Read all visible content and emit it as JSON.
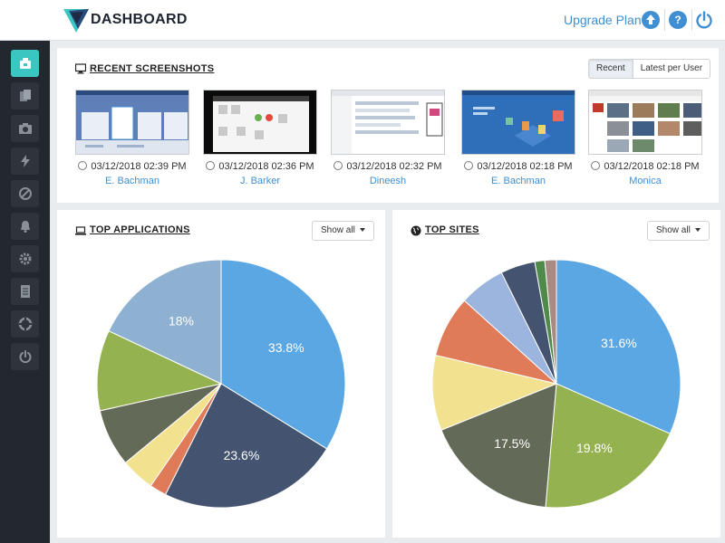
{
  "header": {
    "brand": "DASHBOARD",
    "upgrade_label": "Upgrade Plan",
    "help_label": "?"
  },
  "sidebar": {
    "items": [
      {
        "name": "dashboard-icon",
        "active": true
      },
      {
        "name": "documents-icon",
        "active": false
      },
      {
        "name": "camera-icon",
        "active": false
      },
      {
        "name": "lightning-icon",
        "active": false
      },
      {
        "name": "block-icon",
        "active": false
      },
      {
        "name": "bell-icon",
        "active": false
      },
      {
        "name": "gear-icon",
        "active": false
      },
      {
        "name": "notebook-icon",
        "active": false
      },
      {
        "name": "lifebuoy-icon",
        "active": false
      },
      {
        "name": "power-icon",
        "active": false
      }
    ]
  },
  "recent": {
    "title": "RECENT SCREENSHOTS",
    "tabs": [
      "Recent",
      "Latest per User"
    ],
    "items": [
      {
        "date": "03/12/2018 02:39 PM",
        "user": "E. Bachman"
      },
      {
        "date": "03/12/2018 02:36 PM",
        "user": "J. Barker"
      },
      {
        "date": "03/12/2018 02:32 PM",
        "user": "Dineesh"
      },
      {
        "date": "03/12/2018 02:18 PM",
        "user": "E. Bachman"
      },
      {
        "date": "03/12/2018 02:18 PM",
        "user": "Monica"
      }
    ]
  },
  "top_apps": {
    "title": "TOP APPLICATIONS",
    "show_all": "Show all"
  },
  "top_sites": {
    "title": "TOP SITES",
    "show_all": "Show all"
  },
  "chart_data": [
    {
      "type": "pie",
      "title": "TOP APPLICATIONS",
      "slices": [
        {
          "value": 33.8,
          "label": "33.8%",
          "color": "#5ba7e3"
        },
        {
          "value": 23.6,
          "label": "23.6%",
          "color": "#435370"
        },
        {
          "value": 2.2,
          "label": "",
          "color": "#e07b5a"
        },
        {
          "value": 4.4,
          "label": "",
          "color": "#f2e18e"
        },
        {
          "value": 7.5,
          "label": "",
          "color": "#646a58"
        },
        {
          "value": 10.5,
          "label": "",
          "color": "#95b250"
        },
        {
          "value": 18.0,
          "label": "18%",
          "color": "#8eb1d1"
        }
      ]
    },
    {
      "type": "pie",
      "title": "TOP SITES",
      "slices": [
        {
          "value": 31.6,
          "label": "31.6%",
          "color": "#5ba7e3"
        },
        {
          "value": 19.8,
          "label": "19.8%",
          "color": "#95b250"
        },
        {
          "value": 17.5,
          "label": "17.5%",
          "color": "#646a58"
        },
        {
          "value": 9.8,
          "label": "",
          "color": "#f2e18e"
        },
        {
          "value": 8.0,
          "label": "",
          "color": "#e07b5a"
        },
        {
          "value": 6.0,
          "label": "",
          "color": "#9bb5de"
        },
        {
          "value": 4.5,
          "label": "",
          "color": "#435370"
        },
        {
          "value": 1.3,
          "label": "",
          "color": "#4f8a4a"
        },
        {
          "value": 1.5,
          "label": "",
          "color": "#a88a82"
        }
      ]
    }
  ]
}
